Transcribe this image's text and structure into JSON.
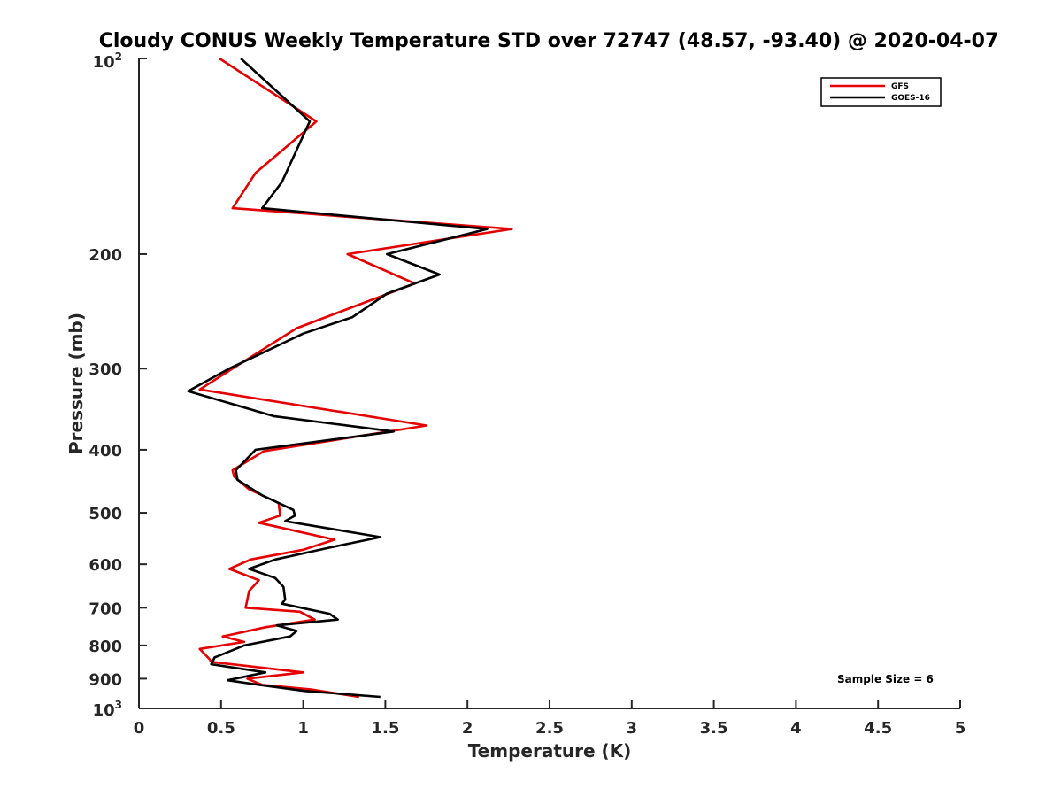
{
  "chart_data": {
    "type": "line",
    "title": "Cloudy CONUS Weekly Temperature STD over 72747 (48.57, -93.40) @ 2020-04-07",
    "xlabel": "Temperature (K)",
    "ylabel": "Pressure (mb)",
    "xlim": [
      0,
      5
    ],
    "ylim": [
      100,
      1000
    ],
    "yscale": "log",
    "y_reversed": true,
    "x_ticks": [
      0,
      0.5,
      1,
      1.5,
      2,
      2.5,
      3,
      3.5,
      4,
      4.5,
      5
    ],
    "x_tick_labels": [
      "0",
      "0.5",
      "1",
      "1.5",
      "2",
      "2.5",
      "3",
      "3.5",
      "4",
      "4.5",
      "5"
    ],
    "y_ticks": [
      200,
      300,
      400,
      500,
      600,
      700,
      800,
      900
    ],
    "y_tick_labels": [
      "200",
      "300",
      "400",
      "500",
      "600",
      "700",
      "800",
      "900"
    ],
    "y_end_labels": {
      "top_base": "10",
      "top_exp": "2",
      "bottom_base": "10",
      "bottom_exp": "3"
    },
    "legend": {
      "position": "top-right",
      "entries": [
        "GFS",
        "GOES-16"
      ]
    },
    "annotation": "Sample Size = 6",
    "series": [
      {
        "name": "GFS",
        "color": "#e60000",
        "points": [
          [
            0.49,
            100
          ],
          [
            1.08,
            125
          ],
          [
            0.71,
            150
          ],
          [
            0.57,
            170
          ],
          [
            2.27,
            183
          ],
          [
            1.27,
            200
          ],
          [
            1.68,
            222
          ],
          [
            0.96,
            260
          ],
          [
            0.57,
            300
          ],
          [
            0.37,
            323
          ],
          [
            1.75,
            367
          ],
          [
            0.76,
            402
          ],
          [
            0.57,
            430
          ],
          [
            0.58,
            440
          ],
          [
            0.67,
            460
          ],
          [
            0.85,
            483
          ],
          [
            0.86,
            505
          ],
          [
            0.73,
            518
          ],
          [
            1.19,
            550
          ],
          [
            1.0,
            570
          ],
          [
            0.68,
            590
          ],
          [
            0.55,
            610
          ],
          [
            0.73,
            635
          ],
          [
            0.67,
            660
          ],
          [
            0.65,
            700
          ],
          [
            0.98,
            710
          ],
          [
            1.07,
            730
          ],
          [
            0.77,
            750
          ],
          [
            0.51,
            775
          ],
          [
            0.64,
            790
          ],
          [
            0.37,
            810
          ],
          [
            0.43,
            840
          ],
          [
            0.44,
            848
          ],
          [
            1.0,
            880
          ],
          [
            0.66,
            900
          ],
          [
            0.75,
            920
          ],
          [
            1.05,
            935
          ],
          [
            1.34,
            960
          ]
        ]
      },
      {
        "name": "GOES-16",
        "color": "#000000",
        "points": [
          [
            0.62,
            100
          ],
          [
            1.04,
            125
          ],
          [
            0.87,
            155
          ],
          [
            0.75,
            170
          ],
          [
            2.12,
            183
          ],
          [
            1.51,
            200
          ],
          [
            1.83,
            215
          ],
          [
            1.51,
            230
          ],
          [
            1.3,
            250
          ],
          [
            1.0,
            265
          ],
          [
            0.55,
            300
          ],
          [
            0.3,
            325
          ],
          [
            0.82,
            355
          ],
          [
            1.55,
            375
          ],
          [
            0.71,
            400
          ],
          [
            0.59,
            430
          ],
          [
            0.6,
            445
          ],
          [
            0.75,
            470
          ],
          [
            0.94,
            495
          ],
          [
            0.95,
            505
          ],
          [
            0.89,
            515
          ],
          [
            1.47,
            545
          ],
          [
            1.17,
            565
          ],
          [
            0.83,
            590
          ],
          [
            0.67,
            610
          ],
          [
            0.83,
            630
          ],
          [
            0.88,
            650
          ],
          [
            0.89,
            680
          ],
          [
            0.87,
            690
          ],
          [
            1.16,
            715
          ],
          [
            1.21,
            730
          ],
          [
            0.84,
            745
          ],
          [
            0.96,
            760
          ],
          [
            0.92,
            775
          ],
          [
            0.64,
            800
          ],
          [
            0.46,
            835
          ],
          [
            0.44,
            855
          ],
          [
            0.77,
            880
          ],
          [
            0.54,
            905
          ],
          [
            0.73,
            920
          ],
          [
            1.01,
            940
          ],
          [
            1.47,
            960
          ]
        ]
      }
    ]
  }
}
